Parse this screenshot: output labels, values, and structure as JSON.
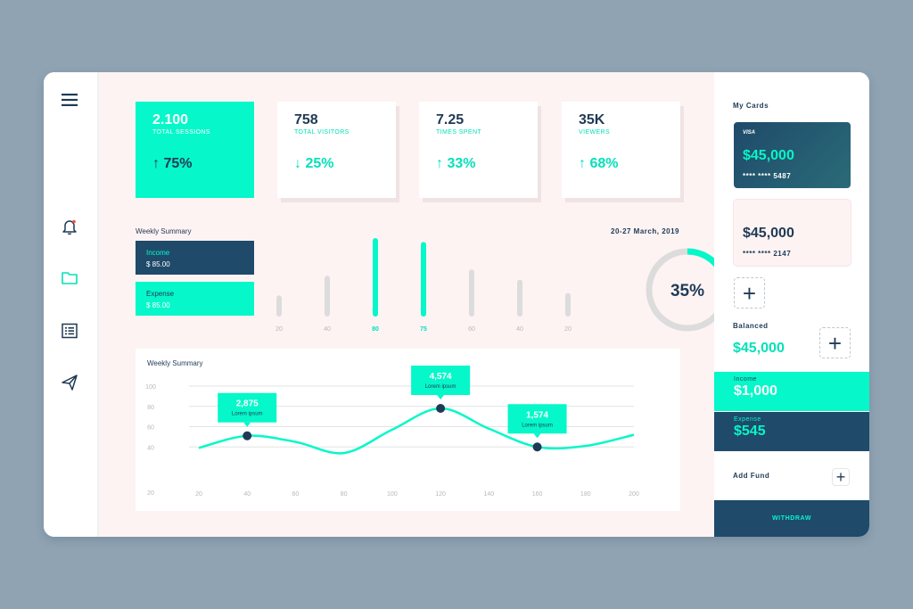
{
  "stats": [
    {
      "value": "2.100",
      "label": "TOTAL SESSIONS",
      "change": "75%"
    },
    {
      "value": "758",
      "label": "TOTAL VISITORS",
      "change": "25%"
    },
    {
      "value": "7.25",
      "label": "TIMES SPENT",
      "change": "33%"
    },
    {
      "value": "35K",
      "label": "VIEWERS",
      "change": "68%"
    }
  ],
  "weekly_summary": {
    "title": "Weekly Summary",
    "income_label": "Income",
    "income_value": "$ 85.00",
    "expense_label": "Expense",
    "expense_value": "$ 85.00",
    "date_range": "20-27 March, 2019",
    "donut_label": "35%"
  },
  "line_panel": {
    "title": "Weekly Summary"
  },
  "right": {
    "my_cards_label": "My Cards",
    "card1": {
      "brand": "VISA",
      "amount": "$45,000",
      "number": "**** **** 5487"
    },
    "card2": {
      "amount": "$45,000",
      "number": "**** **** 2147"
    },
    "balanced_label": "Balanced",
    "balanced_value": "$45,000",
    "income_label": "Income",
    "income_value": "$1,000",
    "expense_label": "Expense",
    "expense_value": "$545",
    "add_fund_label": "Add Fund",
    "withdraw_label": "WITHDRAW"
  },
  "colors": {
    "teal": "#06f7c9",
    "navy": "#1f4a6a",
    "dark_text": "#1f3a55"
  },
  "icons": [
    "menu-icon",
    "bell-icon",
    "folder-icon",
    "list-icon",
    "send-icon",
    "arrow-up-icon",
    "arrow-down-icon",
    "plus-icon"
  ],
  "chart_data": [
    {
      "type": "bar",
      "categories": [
        "20",
        "40",
        "80",
        "75",
        "60",
        "40",
        "20"
      ],
      "values": [
        27,
        52,
        100,
        95,
        60,
        47,
        30
      ],
      "highlight": [
        false,
        false,
        true,
        true,
        false,
        false,
        false
      ],
      "xlabel": "",
      "ylabel": ""
    },
    {
      "type": "pie",
      "values": [
        35,
        65
      ],
      "center_label": "35%"
    },
    {
      "type": "line",
      "title": "Weekly Summary",
      "x": [
        20,
        40,
        60,
        80,
        100,
        120,
        140,
        160,
        180,
        200
      ],
      "xticks": [
        "20",
        "40",
        "60",
        "80",
        "100",
        "120",
        "140",
        "160",
        "180",
        "200"
      ],
      "yticks": [
        "20",
        "40",
        "60",
        "80",
        "100"
      ],
      "ylim": [
        20,
        100
      ],
      "series": [
        {
          "values": [
            [
              20,
              39
            ],
            [
              40,
              51
            ],
            [
              60,
              45
            ],
            [
              80,
              34
            ],
            [
              100,
              57
            ],
            [
              120,
              78
            ],
            [
              140,
              58
            ],
            [
              160,
              40
            ],
            [
              180,
              41
            ],
            [
              200,
              52
            ]
          ]
        }
      ],
      "markers": [
        {
          "x": 40,
          "y": 51,
          "value": "2,875",
          "note": "Lorem ipsum"
        },
        {
          "x": 120,
          "y": 78,
          "value": "4,574",
          "note": "Lorem ipsum"
        },
        {
          "x": 160,
          "y": 40,
          "value": "1,574",
          "note": "Lorem ipsum"
        }
      ]
    }
  ]
}
